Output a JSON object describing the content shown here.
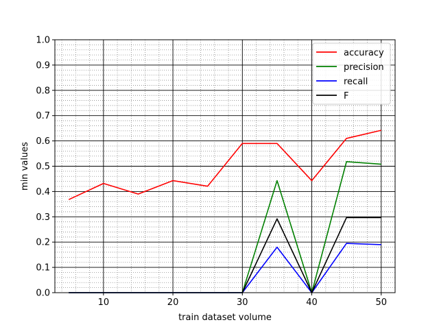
{
  "chart_data": {
    "type": "line",
    "title": "",
    "xlabel": "train dataset volume",
    "ylabel": "min values",
    "xlim": [
      3,
      52
    ],
    "ylim": [
      0,
      1.0
    ],
    "x_ticks": [
      10,
      20,
      30,
      40,
      50
    ],
    "y_ticks": [
      0.0,
      0.1,
      0.2,
      0.3,
      0.4,
      0.5,
      0.6,
      0.7,
      0.8,
      0.9,
      1.0
    ],
    "grid": "major and minor",
    "legend_position": "top-right",
    "x": [
      5,
      10,
      15,
      20,
      25,
      30,
      35,
      40,
      45,
      50
    ],
    "series": [
      {
        "name": "accuracy",
        "color": "#ff0000",
        "values": [
          0.368,
          0.432,
          0.39,
          0.443,
          0.421,
          0.59,
          0.59,
          0.443,
          0.61,
          0.642
        ]
      },
      {
        "name": "precision",
        "color": "#008000",
        "values": [
          0.0,
          0.0,
          0.0,
          0.0,
          0.0,
          0.0,
          0.443,
          0.0,
          0.518,
          0.508
        ]
      },
      {
        "name": "recall",
        "color": "#0000ff",
        "values": [
          0.0,
          0.0,
          0.0,
          0.0,
          0.0,
          0.0,
          0.18,
          0.0,
          0.195,
          0.19
        ]
      },
      {
        "name": "F",
        "color": "#000000",
        "values": [
          0.0,
          0.0,
          0.0,
          0.0,
          0.0,
          0.0,
          0.292,
          0.0,
          0.297,
          0.297
        ]
      }
    ]
  }
}
